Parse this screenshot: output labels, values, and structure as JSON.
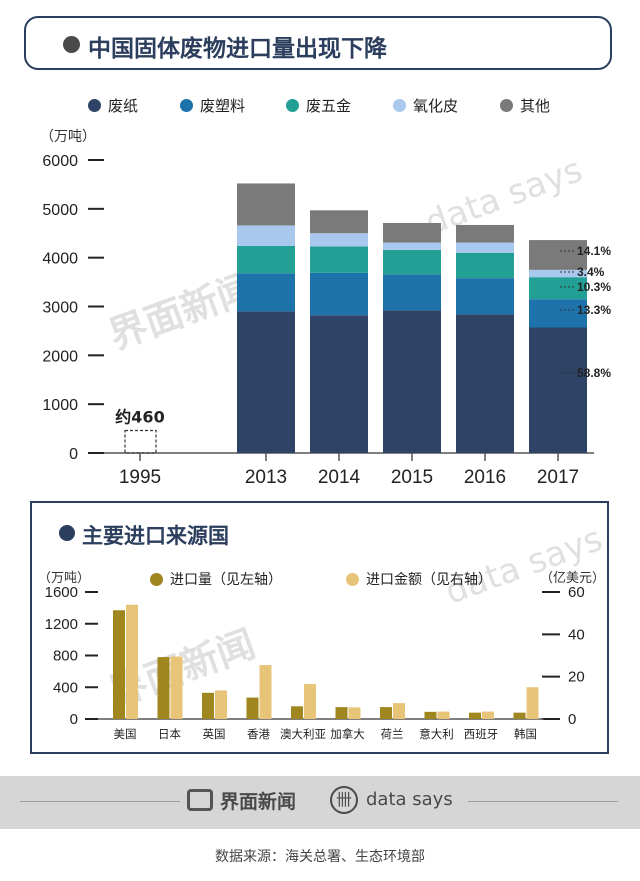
{
  "title": "中国固体废物进口量出现下降",
  "top_chart": {
    "unit": "（万吨）",
    "legend": [
      {
        "name": "废纸",
        "color": "#2e4366"
      },
      {
        "name": "废塑料",
        "color": "#1d72aa"
      },
      {
        "name": "废五金",
        "color": "#22a095"
      },
      {
        "name": "氧化皮",
        "color": "#a9c8ee"
      },
      {
        "name": "其他",
        "color": "#7a7a7a"
      }
    ],
    "annotation_1995": "约460",
    "pct_labels": [
      "14.1%",
      "3.4%",
      "10.3%",
      "13.3%",
      "58.8%"
    ]
  },
  "lower_title": "主要进口来源国",
  "lower_chart": {
    "left_unit": "（万吨）",
    "right_unit": "（亿美元）",
    "legend": [
      {
        "name": "进口量（见左轴）",
        "color": "#a0861e"
      },
      {
        "name": "进口金额（见右轴）",
        "color": "#e8c479"
      }
    ]
  },
  "footer": {
    "brand1": "界面新闻",
    "brand2": "data says",
    "source": "数据来源：海关总署、生态环境部"
  },
  "watermarks": [
    "界面新闻",
    "data says"
  ],
  "chart_data": [
    {
      "type": "bar",
      "stacked": true,
      "title": "",
      "ylabel": "（万吨）",
      "ylim": [
        0,
        6000
      ],
      "yticks": [
        0,
        1000,
        2000,
        3000,
        4000,
        5000,
        6000
      ],
      "categories": [
        "1995",
        "2013",
        "2014",
        "2015",
        "2016",
        "2017"
      ],
      "series": [
        {
          "name": "废纸",
          "values": [
            null,
            2900,
            2820,
            2920,
            2840,
            2570
          ]
        },
        {
          "name": "废塑料",
          "values": [
            null,
            780,
            870,
            740,
            740,
            580
          ]
        },
        {
          "name": "废五金",
          "values": [
            null,
            560,
            540,
            500,
            520,
            450
          ]
        },
        {
          "name": "氧化皮",
          "values": [
            null,
            420,
            270,
            150,
            210,
            150
          ]
        },
        {
          "name": "其他",
          "values": [
            null,
            860,
            470,
            400,
            360,
            610
          ]
        }
      ],
      "total_1995": 460,
      "grid": false,
      "legend_position": "top"
    },
    {
      "type": "bar",
      "title": "主要进口来源国",
      "ylabel_left": "（万吨）",
      "ylabel_right": "（亿美元）",
      "ylim_left": [
        0,
        1600
      ],
      "ylim_right": [
        0,
        60
      ],
      "yticks_left": [
        0,
        400,
        800,
        1200,
        1600
      ],
      "yticks_right": [
        0,
        20,
        40,
        60
      ],
      "categories": [
        "美国",
        "日本",
        "英国",
        "香港",
        "澳大利亚",
        "加拿大",
        "荷兰",
        "意大利",
        "西班牙",
        "韩国"
      ],
      "series": [
        {
          "name": "进口量（见左轴）",
          "axis": "left",
          "values": [
            1370,
            780,
            330,
            270,
            160,
            150,
            150,
            90,
            80,
            80
          ]
        },
        {
          "name": "进口金额（见右轴）",
          "axis": "right",
          "values": [
            54,
            29.5,
            13.5,
            25.5,
            16.5,
            5.5,
            7.5,
            3.5,
            3.5,
            15
          ]
        }
      ],
      "grid": false,
      "legend_position": "top"
    }
  ]
}
